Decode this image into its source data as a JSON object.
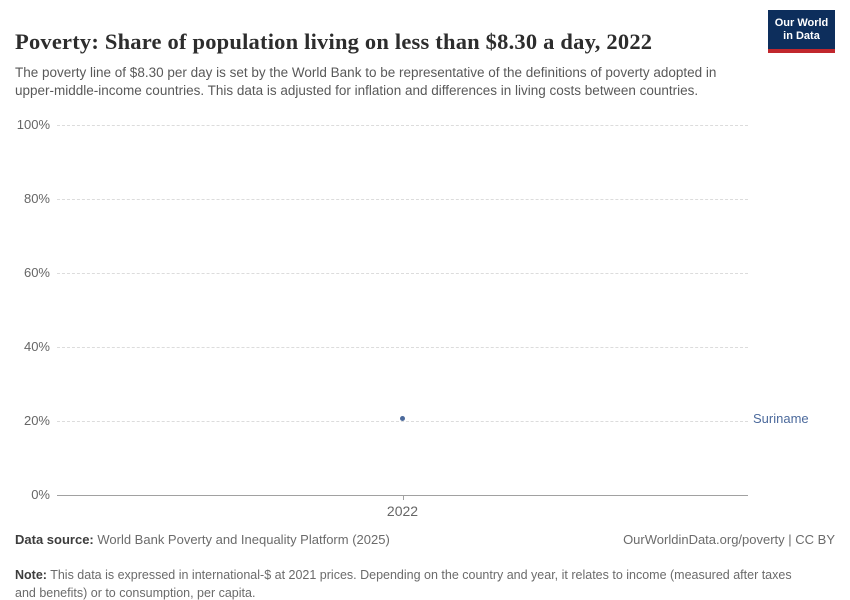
{
  "header": {
    "title": "Poverty: Share of population living on less than $8.30 a day, 2022",
    "subtitle": "The poverty line of $8.30 per day is set by the World Bank to be representative of the definitions of poverty adopted in upper-middle-income countries. This data is adjusted for inflation and differences in living costs between countries.",
    "logo": {
      "line1": "Our World",
      "line2": "in Data",
      "bg_color": "#0d2e5c",
      "stripe_color": "#c1272d"
    }
  },
  "chart_data": {
    "type": "scatter",
    "title": "Poverty: Share of population living on less than $8.30 a day, 2022",
    "xlabel": "",
    "ylabel": "",
    "ylim": [
      0,
      100
    ],
    "yticks": [
      {
        "value": 0,
        "label": "0%"
      },
      {
        "value": 20,
        "label": "20%"
      },
      {
        "value": 40,
        "label": "40%"
      },
      {
        "value": 60,
        "label": "60%"
      },
      {
        "value": 80,
        "label": "80%"
      },
      {
        "value": 100,
        "label": "100%"
      }
    ],
    "xticks": [
      {
        "value": 2022,
        "label": "2022"
      }
    ],
    "grid": "horizontal-dashed",
    "legend_position": "entity-label-right",
    "point_color": "#4c6a9c",
    "series": [
      {
        "name": "Suriname",
        "points": [
          {
            "x": 2022,
            "y": 20.6
          }
        ]
      }
    ]
  },
  "footer": {
    "datasource_label": "Data source:",
    "datasource_text": " World Bank Poverty and Inequality Platform (2025)",
    "rights": "OurWorldinData.org/poverty | CC BY",
    "note_label": "Note:",
    "note_text": " This data is expressed in international-$ at 2021 prices. Depending on the country and year, it relates to income (measured after taxes and benefits) or to consumption, per capita."
  }
}
